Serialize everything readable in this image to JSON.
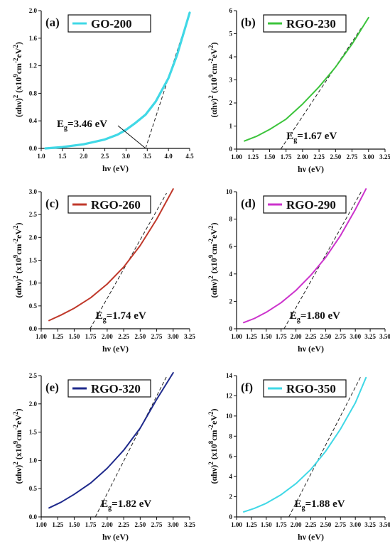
{
  "chart_data": [
    {
      "type": "line",
      "panel_label": "(a)",
      "legend": "GO-200",
      "color": "#40d8e6",
      "xlabel": "hν (eV)",
      "ylabel_main": "(αhν)",
      "ylabel_rest": "(x10",
      "ylabel_exp": "9",
      "ylabel_unit": "cm",
      "ylabel_unit_exp": "-2",
      "ylabel_ev": "eV",
      "ylabel_ev_exp": "2",
      "ylabel_close": ")",
      "xlim": [
        1.0,
        4.5
      ],
      "ylim": [
        0.0,
        2.0
      ],
      "xticks": [
        "1.0",
        "1.5",
        "2.0",
        "2.5",
        "3.0",
        "3.5",
        "4.0",
        "4.5"
      ],
      "yticks": [
        "0.0",
        "0.4",
        "0.8",
        "1.2",
        "1.6",
        "2.0"
      ],
      "curve": {
        "x": [
          1.1,
          1.5,
          2.0,
          2.5,
          2.8,
          3.0,
          3.2,
          3.46,
          3.7,
          4.0,
          4.2,
          4.5
        ],
        "y": [
          0.0,
          0.02,
          0.06,
          0.13,
          0.2,
          0.27,
          0.36,
          0.49,
          0.68,
          1.02,
          1.35,
          1.97
        ]
      },
      "fit_x": [
        3.46,
        4.5
      ],
      "eg_prefix": "E",
      "eg_sub": "g",
      "eg_value": "=3.46 eV",
      "eg_x": 3.46
    },
    {
      "type": "line",
      "panel_label": "(b)",
      "legend": "RGO-230",
      "color": "#3cc43c",
      "xlabel": "hν (eV)",
      "ylabel_main": "(αhν)",
      "ylabel_rest": "(x10",
      "ylabel_exp": "9",
      "ylabel_unit": "cm",
      "ylabel_unit_exp": "-2",
      "ylabel_ev": "eV",
      "ylabel_ev_exp": "2",
      "ylabel_close": ")",
      "xlim": [
        1.0,
        3.25
      ],
      "ylim": [
        0,
        6
      ],
      "xticks": [
        "1.00",
        "1.25",
        "1.50",
        "1.75",
        "2.00",
        "2.25",
        "2.50",
        "2.75",
        "3.00",
        "3.25"
      ],
      "yticks": [
        "0",
        "1",
        "2",
        "3",
        "4",
        "5",
        "6"
      ],
      "curve": {
        "x": [
          1.12,
          1.3,
          1.5,
          1.75,
          2.0,
          2.25,
          2.5,
          2.75,
          3.0
        ],
        "y": [
          0.35,
          0.55,
          0.85,
          1.3,
          1.95,
          2.7,
          3.55,
          4.55,
          5.7
        ]
      },
      "fit_x": [
        1.67,
        2.9
      ],
      "eg_prefix": "E",
      "eg_sub": "g",
      "eg_value": "=1.67 eV",
      "eg_x": 1.67
    },
    {
      "type": "line",
      "panel_label": "(c)",
      "legend": "RGO-260",
      "color": "#c0392b",
      "xlabel": "hν (eV)",
      "ylabel_main": "(αhν)",
      "ylabel_rest": "(x10",
      "ylabel_exp": "9",
      "ylabel_unit": "cm",
      "ylabel_unit_exp": "-2",
      "ylabel_ev": "eV",
      "ylabel_ev_exp": "2",
      "ylabel_close": ")",
      "xlim": [
        1.0,
        3.25
      ],
      "ylim": [
        0.0,
        3.0
      ],
      "xticks": [
        "1.00",
        "1.25",
        "1.50",
        "1.75",
        "2.00",
        "2.25",
        "2.50",
        "2.75",
        "3.00",
        "3.25"
      ],
      "yticks": [
        "0.0",
        "0.5",
        "1.0",
        "1.5",
        "2.0",
        "2.5",
        "3.0"
      ],
      "curve": {
        "x": [
          1.12,
          1.3,
          1.5,
          1.75,
          2.0,
          2.25,
          2.5,
          2.75,
          3.0
        ],
        "y": [
          0.18,
          0.3,
          0.45,
          0.68,
          0.98,
          1.35,
          1.82,
          2.4,
          3.1
        ]
      },
      "fit_x": [
        1.74,
        2.9
      ],
      "eg_prefix": "E",
      "eg_sub": "g",
      "eg_value": "=1.74 eV",
      "eg_x": 1.74
    },
    {
      "type": "line",
      "panel_label": "(d)",
      "legend": "RGO-290",
      "color": "#cc33cc",
      "xlabel": "hν (eV)",
      "ylabel_main": "(αhν)",
      "ylabel_rest": "(x10",
      "ylabel_exp": "9",
      "ylabel_unit": "cm",
      "ylabel_unit_exp": "-2",
      "ylabel_ev": "eV",
      "ylabel_ev_exp": "2",
      "ylabel_close": ")",
      "xlim": [
        1.0,
        3.5
      ],
      "ylim": [
        0,
        10
      ],
      "xticks": [
        "1.00",
        "1.25",
        "1.50",
        "1.75",
        "2.00",
        "2.25",
        "2.50",
        "2.75",
        "3.00",
        "3.25",
        "3.50"
      ],
      "yticks": [
        "0",
        "2",
        "4",
        "6",
        "8",
        "10"
      ],
      "curve": {
        "x": [
          1.12,
          1.3,
          1.5,
          1.75,
          2.0,
          2.25,
          2.5,
          2.75,
          3.0,
          3.18
        ],
        "y": [
          0.45,
          0.75,
          1.2,
          1.9,
          2.8,
          3.9,
          5.2,
          6.8,
          8.7,
          10.6
        ]
      },
      "fit_x": [
        1.8,
        3.1
      ],
      "eg_prefix": "E",
      "eg_sub": "g",
      "eg_value": "=1.80 eV",
      "eg_x": 1.8
    },
    {
      "type": "line",
      "panel_label": "(e)",
      "legend": "RGO-320",
      "color": "#1f2a8c",
      "xlabel": "hν (eV)",
      "ylabel_main": "(αhν)",
      "ylabel_rest": "(x10",
      "ylabel_exp": "9",
      "ylabel_unit": "cm",
      "ylabel_unit_exp": "-2",
      "ylabel_ev": "eV",
      "ylabel_ev_exp": "2",
      "ylabel_close": ")",
      "xlim": [
        1.0,
        3.25
      ],
      "ylim": [
        0.0,
        2.5
      ],
      "xticks": [
        "1.00",
        "1.25",
        "1.50",
        "1.75",
        "2.00",
        "2.25",
        "2.50",
        "2.75",
        "3.00",
        "3.25"
      ],
      "yticks": [
        "0.0",
        "0.5",
        "1.0",
        "1.5",
        "2.0",
        "2.5"
      ],
      "curve": {
        "x": [
          1.12,
          1.3,
          1.5,
          1.75,
          2.0,
          2.25,
          2.5,
          2.75,
          3.0
        ],
        "y": [
          0.16,
          0.26,
          0.4,
          0.6,
          0.86,
          1.18,
          1.57,
          2.08,
          2.72
        ]
      },
      "fit_x": [
        1.82,
        2.9
      ],
      "eg_prefix": "E",
      "eg_sub": "g",
      "eg_value": "=1.82 eV",
      "eg_x": 1.82
    },
    {
      "type": "line",
      "panel_label": "(f)",
      "legend": "RGO-350",
      "color": "#40d8e6",
      "xlabel": "hν (eV)",
      "ylabel_main": "(αhν)",
      "ylabel_rest": "(x10",
      "ylabel_exp": "8",
      "ylabel_unit": "cm",
      "ylabel_unit_exp": "-2",
      "ylabel_ev": "eV",
      "ylabel_ev_exp": "2",
      "ylabel_close": ")",
      "xlim": [
        1.0,
        3.5
      ],
      "ylim": [
        0,
        14
      ],
      "xticks": [
        "1.00",
        "1.25",
        "1.50",
        "1.75",
        "2.00",
        "2.25",
        "2.50",
        "2.75",
        "3.00",
        "3.25",
        "3.50"
      ],
      "yticks": [
        "0",
        "2",
        "4",
        "6",
        "8",
        "10",
        "12",
        "14"
      ],
      "curve": {
        "x": [
          1.12,
          1.3,
          1.5,
          1.75,
          2.0,
          2.25,
          2.5,
          2.75,
          3.0,
          3.18
        ],
        "y": [
          0.5,
          0.85,
          1.35,
          2.2,
          3.3,
          4.7,
          6.5,
          8.7,
          11.3,
          13.8
        ]
      },
      "fit_x": [
        1.88,
        3.1
      ],
      "eg_prefix": "E",
      "eg_sub": "g",
      "eg_value": "=1.88 eV",
      "eg_x": 1.88
    }
  ]
}
